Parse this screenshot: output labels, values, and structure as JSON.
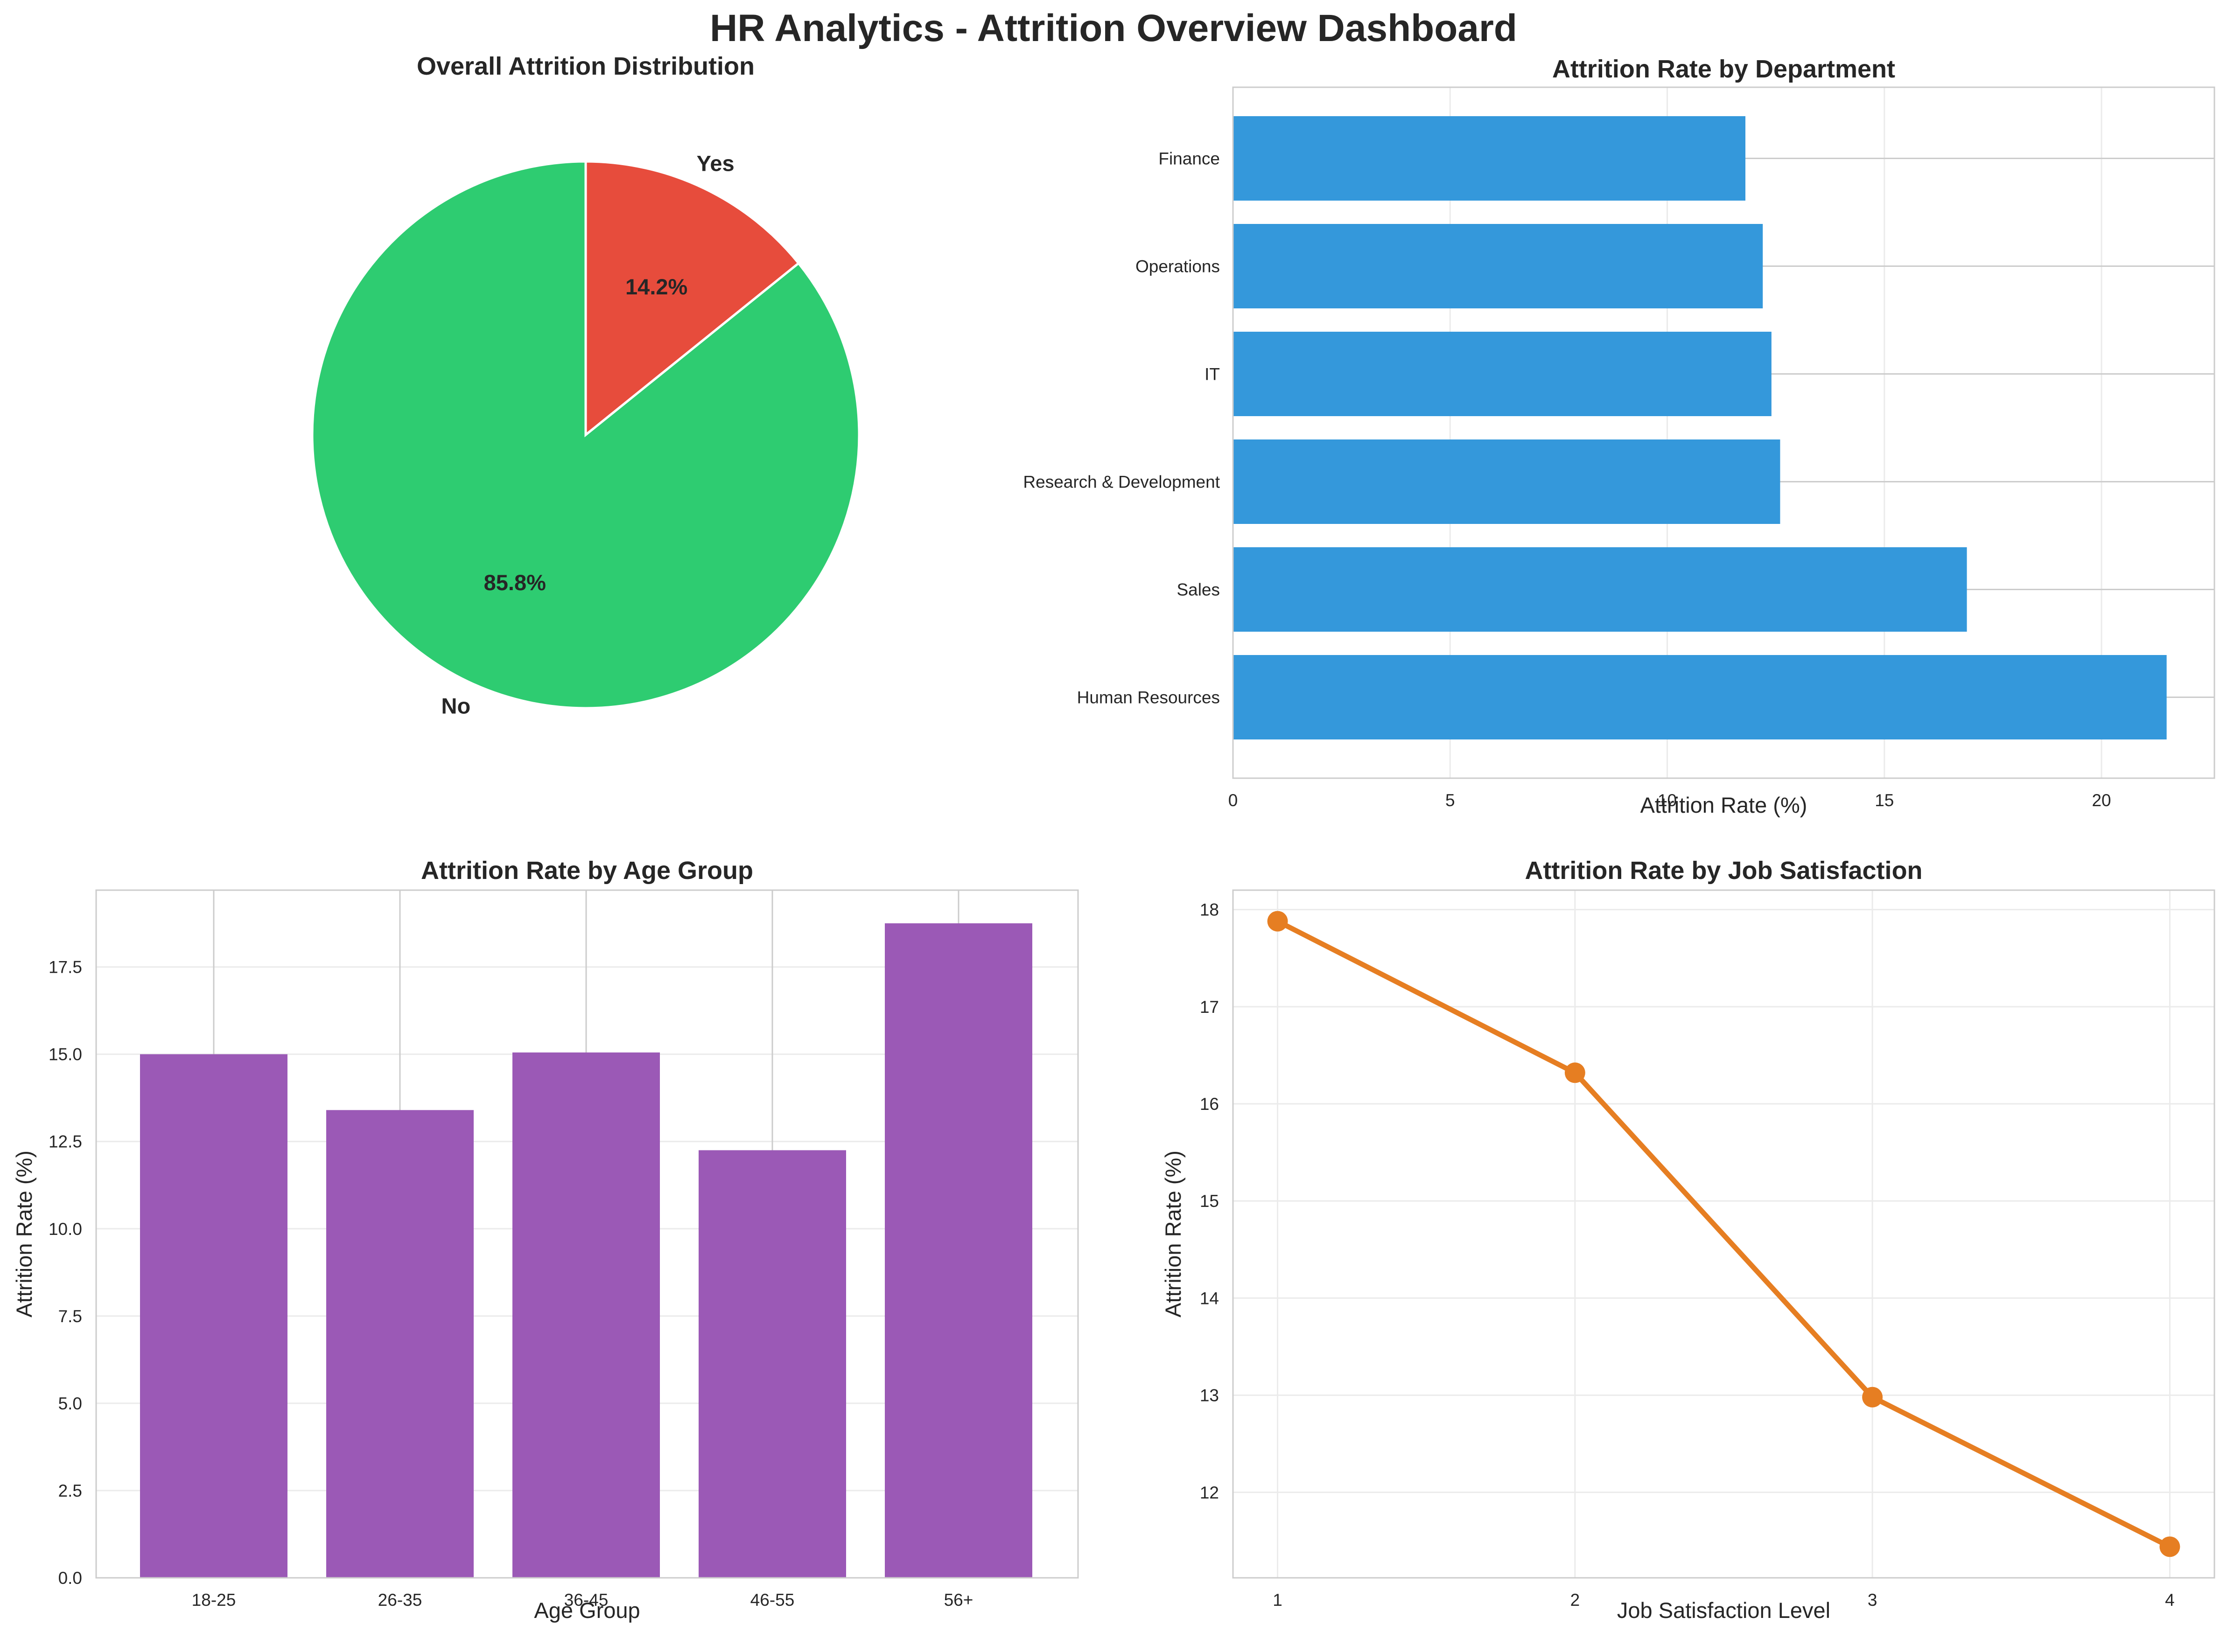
{
  "dashboard": {
    "title": "HR Analytics - Attrition Overview Dashboard"
  },
  "chart_data": [
    {
      "id": "pie",
      "type": "pie",
      "title": "Overall Attrition Distribution",
      "categories": [
        "No",
        "Yes"
      ],
      "values": [
        85.8,
        14.2
      ],
      "value_labels": [
        "85.8%",
        "14.2%"
      ],
      "colors": [
        "#2ecc71",
        "#e74c3c"
      ],
      "start_angle": 90,
      "direction": "counterclockwise"
    },
    {
      "id": "dept",
      "type": "bar",
      "orientation": "horizontal",
      "title": "Attrition Rate by Department",
      "xlabel": "Attrition Rate (%)",
      "ylabel": "",
      "categories": [
        "Finance",
        "Operations",
        "IT",
        "Research & Development",
        "Sales",
        "Human Resources"
      ],
      "values": [
        11.8,
        12.2,
        12.4,
        12.6,
        16.9,
        21.5
      ],
      "color": "#3498db",
      "xlim": [
        0,
        22.6
      ],
      "xticks": [
        0,
        5,
        10,
        15,
        20
      ],
      "grid": true
    },
    {
      "id": "age",
      "type": "bar",
      "title": "Attrition Rate by Age Group",
      "xlabel": "Age Group",
      "ylabel": "Attrition Rate (%)",
      "categories": [
        "18-25",
        "26-35",
        "36-45",
        "46-55",
        "56+"
      ],
      "values": [
        15.0,
        13.4,
        15.05,
        12.25,
        18.75
      ],
      "color": "#9b59b6",
      "ylim": [
        0,
        19.7
      ],
      "yticks": [
        0,
        2.5,
        5,
        7.5,
        10,
        12.5,
        15,
        17.5
      ],
      "ytick_labels": [
        "0.0",
        "2.5",
        "5.0",
        "7.5",
        "10.0",
        "12.5",
        "15.0",
        "17.5"
      ],
      "grid": true
    },
    {
      "id": "sat",
      "type": "line",
      "title": "Attrition Rate by Job Satisfaction",
      "xlabel": "Job Satisfaction Level",
      "ylabel": "Attrition Rate (%)",
      "x": [
        1,
        2,
        3,
        4
      ],
      "values": [
        17.88,
        16.32,
        12.98,
        11.44
      ],
      "color": "#e67e22",
      "xlim": [
        0.85,
        4.15
      ],
      "ylim": [
        11.12,
        18.2
      ],
      "xticks": [
        1,
        2,
        3,
        4
      ],
      "yticks": [
        12,
        13,
        14,
        15,
        16,
        17,
        18
      ],
      "grid": true,
      "marker": "circle"
    }
  ]
}
